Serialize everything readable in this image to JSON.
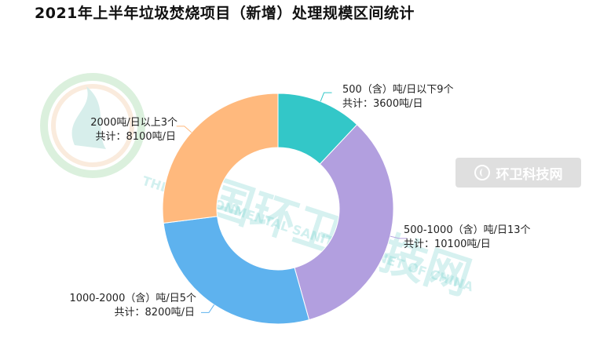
{
  "title": "2021年上半年垃圾焚烧项目（新增）处理规模区间统计",
  "watermark": {
    "cn_text": "中国环卫科技网",
    "en_text": "THE ENVIRONMENTAL SANITATION NET OF CHINA",
    "badge_text": "环卫科技网"
  },
  "chart_data": {
    "type": "pie",
    "variant": "donut",
    "title": "2021年上半年垃圾焚烧项目（新增）处理规模区间统计",
    "slices": [
      {
        "name": "500（含）吨/日以下9个",
        "sub": "共计：3600吨/日",
        "projects": 9,
        "capacity": 3600,
        "color": "#33C7C8"
      },
      {
        "name": "500-1000（含）吨/日13个",
        "sub": "共计：10100吨/日",
        "projects": 13,
        "capacity": 10100,
        "color": "#B29FDF"
      },
      {
        "name": "1000-2000（含）吨/日5个",
        "sub": "共计：8200吨/日",
        "projects": 5,
        "capacity": 8200,
        "color": "#5EB2EE"
      },
      {
        "name": "2000吨/日以上3个",
        "sub": "共计：8100吨/日",
        "projects": 3,
        "capacity": 8100,
        "color": "#FFB97D"
      }
    ],
    "value_key": "capacity",
    "start_angle_deg": 0,
    "direction": "clockwise",
    "legend": "none"
  }
}
